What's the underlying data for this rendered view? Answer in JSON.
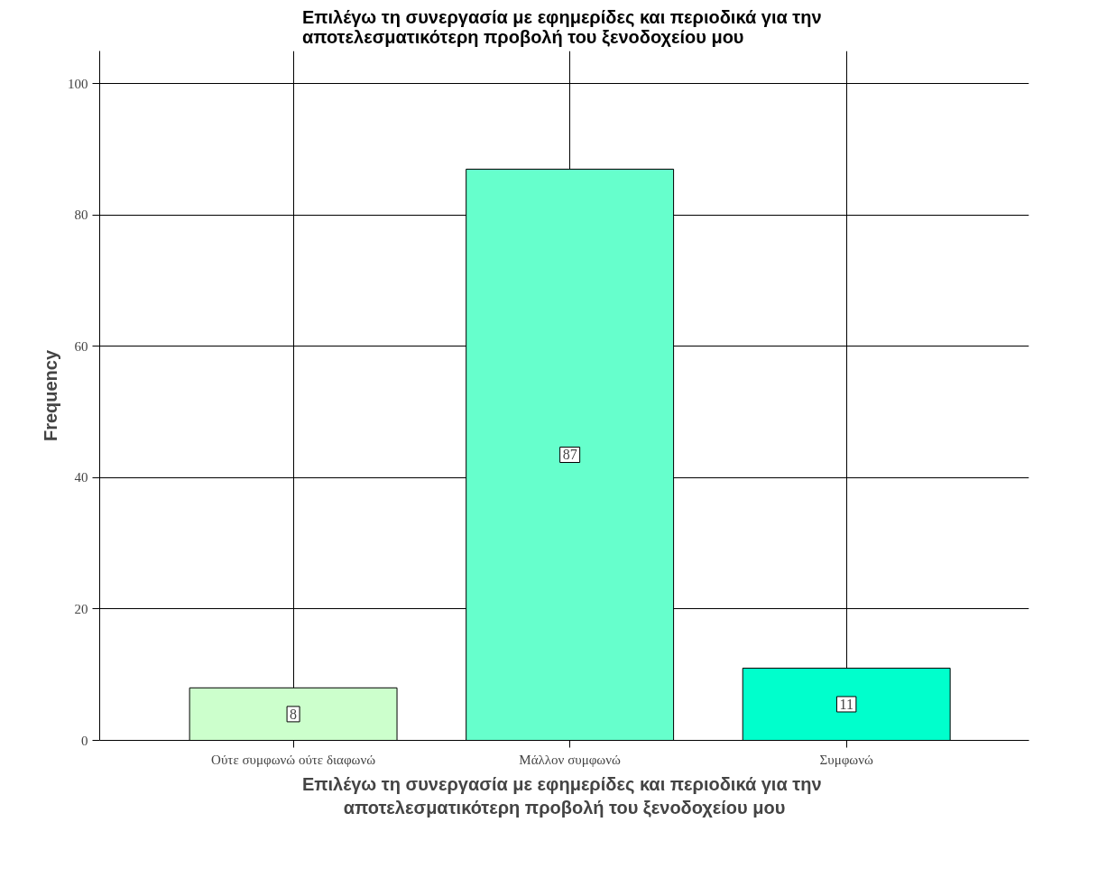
{
  "chart_data": {
    "type": "bar",
    "title": "Επιλέγω τη συνεργασία με εφημερίδες και περιοδικά για  την αποτελεσματικότερη προβολή του ξενοδοχείου μου",
    "xlabel": "Επιλέγω τη συνεργασία με εφημερίδες και περιοδικά για  την αποτελεσματικότερη προβολή του ξενοδοχείου μου",
    "ylabel": "Frequency",
    "categories": [
      "Ούτε συμφωνώ ούτε διαφωνώ",
      "Μάλλον συμφωνώ",
      "Συμφωνώ"
    ],
    "values": [
      8,
      87,
      11
    ],
    "colors": [
      "#ccffcc",
      "#66ffcc",
      "#00ffcc"
    ],
    "ylim": [
      0,
      105
    ],
    "yticks": [
      0,
      20,
      40,
      60,
      80,
      100
    ],
    "grid": true,
    "data_labels": true
  }
}
